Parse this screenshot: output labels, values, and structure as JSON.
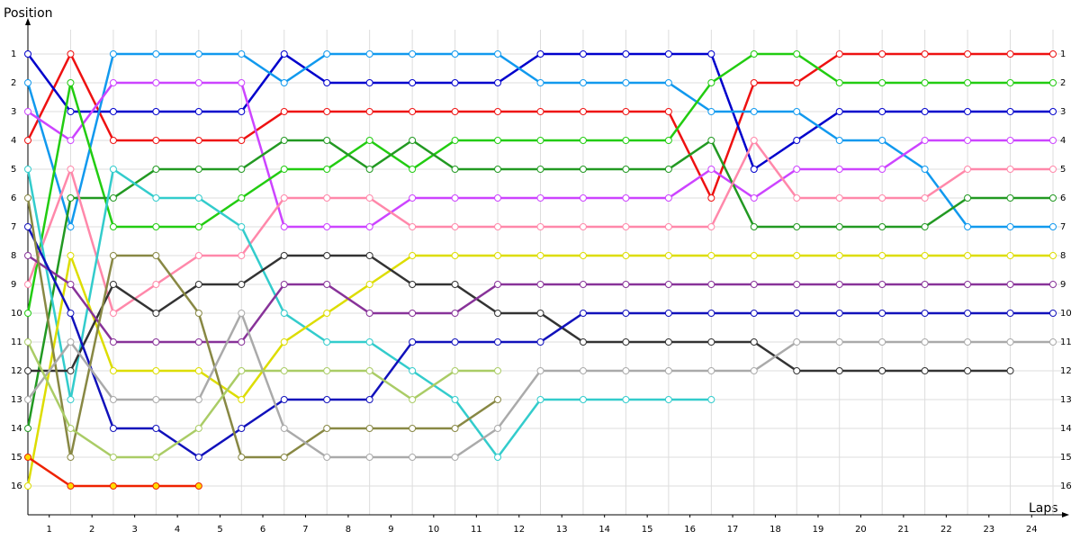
{
  "chart_data": {
    "type": "line",
    "x_label": "Laps",
    "y_label": "Position",
    "y_inverted": true,
    "grid": true,
    "marker": "circle",
    "marker_fill": "#ffffff",
    "x": [
      0,
      1,
      2,
      3,
      4,
      5,
      6,
      7,
      8,
      9,
      10,
      11,
      12,
      13,
      14,
      15,
      16,
      17,
      18,
      19,
      20,
      21,
      22,
      23,
      24
    ],
    "xlim": [
      0,
      24
    ],
    "ylim": [
      0,
      17
    ],
    "xticks": [
      {
        "value": 0.5,
        "label": "1"
      },
      {
        "value": 1.5,
        "label": "2"
      },
      {
        "value": 2.5,
        "label": "3"
      },
      {
        "value": 3.5,
        "label": "4"
      },
      {
        "value": 4.5,
        "label": "5"
      },
      {
        "value": 5.5,
        "label": "6"
      },
      {
        "value": 6.5,
        "label": "7"
      },
      {
        "value": 7.5,
        "label": "8"
      },
      {
        "value": 8.5,
        "label": "9"
      },
      {
        "value": 9.5,
        "label": "10"
      },
      {
        "value": 10.5,
        "label": "11"
      },
      {
        "value": 11.5,
        "label": "12"
      },
      {
        "value": 12.5,
        "label": "13"
      },
      {
        "value": 13.5,
        "label": "14"
      },
      {
        "value": 14.5,
        "label": "15"
      },
      {
        "value": 15.5,
        "label": "16"
      },
      {
        "value": 16.5,
        "label": "17"
      },
      {
        "value": 17.5,
        "label": "18"
      },
      {
        "value": 18.5,
        "label": "19"
      },
      {
        "value": 19.5,
        "label": "20"
      },
      {
        "value": 20.5,
        "label": "21"
      },
      {
        "value": 21.5,
        "label": "22"
      },
      {
        "value": 22.5,
        "label": "23"
      },
      {
        "value": 23.5,
        "label": "24"
      }
    ],
    "yticks": [
      1,
      2,
      3,
      4,
      5,
      6,
      7,
      8,
      9,
      10,
      11,
      12,
      13,
      14,
      15,
      16
    ],
    "series": [
      {
        "color": "#ee1111",
        "values": [
          4,
          1,
          4,
          4,
          4,
          4,
          3,
          3,
          3,
          3,
          3,
          3,
          3,
          3,
          3,
          3,
          6,
          2,
          2,
          1,
          1,
          1,
          1,
          1,
          1
        ]
      },
      {
        "color": "#0000cc",
        "values": [
          1,
          3,
          3,
          3,
          3,
          3,
          1,
          2,
          2,
          2,
          2,
          2,
          1,
          1,
          1,
          1,
          1,
          5,
          4,
          3,
          3,
          3,
          3,
          3,
          3
        ]
      },
      {
        "color": "#1199ee",
        "values": [
          2,
          7,
          1,
          1,
          1,
          1,
          2,
          1,
          1,
          1,
          1,
          1,
          2,
          2,
          2,
          2,
          3,
          3,
          3,
          4,
          4,
          5,
          7,
          7,
          7
        ]
      },
      {
        "color": "#cc44ff",
        "values": [
          3,
          4,
          2,
          2,
          2,
          2,
          7,
          7,
          7,
          6,
          6,
          6,
          6,
          6,
          6,
          6,
          5,
          6,
          5,
          5,
          5,
          4,
          4,
          4,
          4
        ]
      },
      {
        "color": "#22cc11",
        "values": [
          10,
          2,
          7,
          7,
          7,
          6,
          5,
          5,
          4,
          5,
          4,
          4,
          4,
          4,
          4,
          4,
          2,
          1,
          1,
          2,
          2,
          2,
          2,
          2,
          2
        ]
      },
      {
        "color": "#229922",
        "values": [
          14,
          6,
          6,
          5,
          5,
          5,
          4,
          4,
          5,
          4,
          5,
          5,
          5,
          5,
          5,
          5,
          4,
          7,
          7,
          7,
          7,
          7,
          6,
          6,
          6
        ]
      },
      {
        "color": "#ff88aa",
        "values": [
          9,
          5,
          10,
          9,
          8,
          8,
          6,
          6,
          6,
          7,
          7,
          7,
          7,
          7,
          7,
          7,
          7,
          4,
          6,
          6,
          6,
          6,
          5,
          5,
          5
        ]
      },
      {
        "color": "#33cccc",
        "values": [
          5,
          13,
          5,
          6,
          6,
          7,
          10,
          11,
          11,
          12,
          13,
          15,
          13,
          13,
          13,
          13,
          13,
          null,
          null,
          null,
          null,
          null,
          null,
          null,
          null
        ]
      },
      {
        "color": "#dddd00",
        "values": [
          16,
          8,
          12,
          12,
          12,
          13,
          11,
          10,
          9,
          8,
          8,
          8,
          8,
          8,
          8,
          8,
          8,
          8,
          8,
          8,
          8,
          8,
          8,
          8,
          8
        ]
      },
      {
        "color": "#333333",
        "values": [
          12,
          12,
          9,
          10,
          9,
          9,
          8,
          8,
          8,
          9,
          9,
          10,
          10,
          11,
          11,
          11,
          11,
          11,
          12,
          12,
          12,
          12,
          12,
          12,
          null
        ]
      },
      {
        "color": "#883399",
        "values": [
          8,
          9,
          11,
          11,
          11,
          11,
          9,
          9,
          10,
          10,
          10,
          9,
          9,
          9,
          9,
          9,
          9,
          9,
          9,
          9,
          9,
          9,
          9,
          9,
          9
        ]
      },
      {
        "color": "#1111bb",
        "values": [
          7,
          10,
          14,
          14,
          15,
          14,
          13,
          13,
          13,
          11,
          11,
          11,
          11,
          10,
          10,
          10,
          10,
          10,
          10,
          10,
          10,
          10,
          10,
          10,
          10
        ]
      },
      {
        "color": "#888844",
        "values": [
          6,
          15,
          8,
          8,
          10,
          15,
          15,
          14,
          14,
          14,
          14,
          13,
          null,
          null,
          null,
          null,
          null,
          null,
          null,
          null,
          null,
          null,
          null,
          null,
          null
        ]
      },
      {
        "color": "#aaaaaa",
        "values": [
          13,
          11,
          13,
          13,
          13,
          10,
          14,
          15,
          15,
          15,
          15,
          14,
          12,
          12,
          12,
          12,
          12,
          12,
          11,
          11,
          11,
          11,
          11,
          11,
          11
        ]
      },
      {
        "color": "#aacc66",
        "values": [
          11,
          14,
          15,
          15,
          14,
          12,
          12,
          12,
          12,
          13,
          12,
          12,
          null,
          null,
          null,
          null,
          null,
          null,
          null,
          null,
          null,
          null,
          null,
          null,
          null
        ]
      },
      {
        "color": "#ee2200",
        "marker_fill": "#ffdd00",
        "values": [
          15,
          16,
          16,
          16,
          16,
          null,
          null,
          null,
          null,
          null,
          null,
          null,
          null,
          null,
          null,
          null,
          null,
          null,
          null,
          null,
          null,
          null,
          null,
          null,
          null
        ]
      }
    ]
  }
}
